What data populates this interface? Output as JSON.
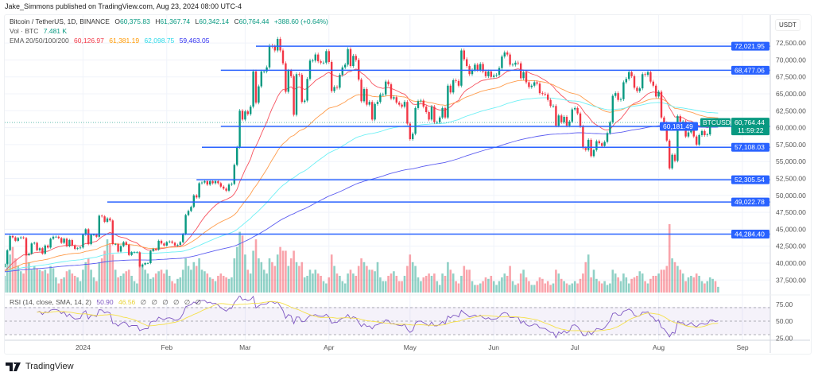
{
  "publisher_line": "Jake_Simmons published on TradingView.com, Aug 23, 2024 08:00 UTC-4",
  "symbol": {
    "title": "Bitcoin / TetherUS, 1D, BINANCE",
    "o_label": "O",
    "open": "60,375.83",
    "h_label": "H",
    "high": "61,367.74",
    "l_label": "L",
    "low": "60,342.14",
    "c_label": "C",
    "close": "60,764.44",
    "change": "+388.60 (+0.64%)"
  },
  "volume_legend": {
    "label": "Vol · BTC",
    "value": "7.481 K"
  },
  "ema_legend": {
    "label": "EMA 20/50/100/200",
    "ema20": "60,126.97",
    "ema50": "61,381.19",
    "ema100": "62,098.75",
    "ema200": "59,463.05"
  },
  "rsi_legend": {
    "label": "RSI (14, close, SMA, 14, 2)",
    "rsi": "50.90",
    "sma": "46.56",
    "empty_values": [
      "∅",
      "∅",
      "∅",
      "∅",
      "∅",
      "∅"
    ]
  },
  "currency": "USDT",
  "current_price": {
    "symbol": "BTCUSDT",
    "price": "60,764.44",
    "countdown": "11:59:22"
  },
  "colors": {
    "up": "#089981",
    "down": "#f23645",
    "level_line": "#2962ff",
    "ema20": "#f7525f",
    "ema50": "#ff9d4d",
    "ema100": "#6ff0f5",
    "ema200": "#5b5cf0",
    "rsi": "#7e57c2",
    "rsi_sma": "#f5e04a"
  },
  "footer_brand": "TradingView",
  "chart_data": {
    "type": "candlestick",
    "interval": "1D",
    "start": "2023-12-01",
    "ylim": [
      35500,
      75000
    ],
    "price_ticks": [
      "72,500.00",
      "70,000.00",
      "67,500.00",
      "65,000.00",
      "62,500.00",
      "60,000.00",
      "57,500.00",
      "55,000.00",
      "52,500.00",
      "50,000.00",
      "47,500.00",
      "45,000.00",
      "42,500.00",
      "40,000.00",
      "37,500.00"
    ],
    "time_ticks": [
      {
        "label": "2024",
        "date": "2024-01-01"
      },
      {
        "label": "Feb",
        "date": "2024-02-01"
      },
      {
        "label": "Mar",
        "date": "2024-03-01"
      },
      {
        "label": "Apr",
        "date": "2024-04-01"
      },
      {
        "label": "May",
        "date": "2024-05-01"
      },
      {
        "label": "Jun",
        "date": "2024-06-01"
      },
      {
        "label": "Jul",
        "date": "2024-07-01"
      },
      {
        "label": "Aug",
        "date": "2024-08-01"
      },
      {
        "label": "Sep",
        "date": "2024-09-01"
      }
    ],
    "rsi_ticks": [
      "75.00",
      "50.00",
      "25.00"
    ],
    "levels": [
      {
        "price": 72021.95,
        "label": "72,021.95",
        "start": "2024-03-05"
      },
      {
        "price": 68477.06,
        "label": "68,477.06",
        "start": "2024-02-21"
      },
      {
        "price": 60181.49,
        "label": "60,181.49",
        "start": "2024-02-21"
      },
      {
        "price": 57108.03,
        "label": "57,108.03",
        "start": "2024-02-14"
      },
      {
        "price": 52305.54,
        "label": "52,305.54",
        "start": "2024-02-12"
      },
      {
        "price": 49022.78,
        "label": "49,022.78",
        "start": "2024-01-10"
      },
      {
        "price": 44284.4,
        "label": "44,284.40",
        "start": "2023-12-03"
      }
    ],
    "close": [
      38700,
      39400,
      39900,
      41900,
      44000,
      43800,
      43300,
      43700,
      43800,
      43700,
      41200,
      41400,
      42900,
      43000,
      41900,
      42200,
      41400,
      42600,
      42300,
      43600,
      43900,
      43900,
      43700,
      43000,
      43600,
      42500,
      43400,
      42600,
      42100,
      42200,
      42300,
      44200,
      45000,
      42800,
      44200,
      44200,
      43900,
      47000,
      46900,
      46100,
      46600,
      46300,
      42800,
      42800,
      41700,
      42500,
      43100,
      42700,
      41200,
      41600,
      41600,
      41600,
      39500,
      39800,
      40000,
      40000,
      41800,
      42100,
      42000,
      43300,
      42900,
      42600,
      43100,
      43200,
      43000,
      42600,
      42700,
      43100,
      44300,
      47100,
      47700,
      48300,
      50000,
      49700,
      51800,
      51900,
      52100,
      51600,
      52100,
      51800,
      52100,
      51800,
      51300,
      51000,
      50700,
      51600,
      51700,
      54500,
      57100,
      62500,
      61200,
      62400,
      62000,
      63100,
      68300,
      63700,
      66100,
      68300,
      68300,
      68900,
      72100,
      72000,
      71400,
      73100,
      71400,
      69500,
      65300,
      68400,
      67600,
      61900,
      67900,
      67800,
      63800,
      64000,
      67200,
      69900,
      69900,
      70800,
      69800,
      69600,
      69600,
      71300,
      69700,
      65400,
      66000,
      65900,
      67800,
      68900,
      69300,
      71600,
      69100,
      70600,
      70000,
      67100,
      63900,
      65700,
      63400,
      63800,
      61200,
      63500,
      63800,
      64900,
      64900,
      66800,
      66400,
      64300,
      64500,
      63700,
      63400,
      63100,
      63800,
      60600,
      58300,
      59100,
      62900,
      63900,
      64000,
      63100,
      62300,
      61200,
      63100,
      60800,
      60800,
      61500,
      62900,
      61500,
      66200,
      65200,
      67000,
      66900,
      66200,
      71400,
      70100,
      69100,
      67900,
      68500,
      69300,
      68500,
      69400,
      68300,
      67600,
      68300,
      67500,
      67700,
      67800,
      68800,
      70500,
      71100,
      70800,
      69300,
      69300,
      69600,
      69500,
      67300,
      68200,
      66700,
      66000,
      66200,
      66700,
      66500,
      65100,
      65000,
      64900,
      64100,
      63200,
      63200,
      60300,
      61800,
      60800,
      61600,
      60300,
      60900,
      62700,
      62900,
      62100,
      60200,
      57000,
      56700,
      58200,
      55800,
      56700,
      58000,
      57700,
      57300,
      57900,
      59200,
      60800,
      64700,
      65100,
      64100,
      64200,
      66700,
      67200,
      68200,
      67600,
      65900,
      65400,
      65800,
      67900,
      67800,
      68200,
      66800,
      66200,
      64600,
      65300,
      61500,
      60700,
      58100,
      54000,
      56000,
      55100,
      61700,
      60900,
      60900,
      58700,
      59300,
      60600,
      58700,
      57500,
      58900,
      59500,
      58900,
      59000,
      61100,
      61100,
      60380,
      60764.44
    ],
    "volume_k": [
      45,
      30,
      22,
      40,
      50,
      60,
      45,
      35,
      28,
      25,
      55,
      40,
      30,
      35,
      32,
      30,
      28,
      30,
      25,
      35,
      32,
      20,
      12,
      18,
      20,
      28,
      30,
      25,
      22,
      20,
      15,
      30,
      40,
      45,
      30,
      20,
      15,
      40,
      45,
      55,
      70,
      65,
      50,
      30,
      20,
      22,
      25,
      28,
      30,
      22,
      15,
      12,
      40,
      35,
      30,
      25,
      18,
      20,
      25,
      28,
      30,
      25,
      30,
      22,
      15,
      12,
      18,
      20,
      30,
      45,
      35,
      30,
      40,
      35,
      45,
      30,
      28,
      25,
      20,
      18,
      15,
      22,
      25,
      22,
      20,
      18,
      20,
      45,
      60,
      80,
      75,
      50,
      30,
      25,
      55,
      70,
      45,
      40,
      30,
      25,
      45,
      40,
      35,
      50,
      60,
      55,
      55,
      35,
      45,
      55,
      40,
      35,
      40,
      20,
      22,
      30,
      25,
      30,
      25,
      22,
      15,
      12,
      20,
      50,
      35,
      25,
      22,
      15,
      12,
      25,
      30,
      25,
      22,
      35,
      45,
      40,
      35,
      30,
      30,
      28,
      40,
      20,
      15,
      15,
      22,
      25,
      28,
      22,
      15,
      15,
      22,
      35,
      50,
      40,
      35,
      20,
      15,
      20,
      22,
      25,
      22,
      25,
      15,
      10,
      25,
      22,
      40,
      30,
      25,
      15,
      12,
      22,
      35,
      30,
      30,
      15,
      10,
      10,
      12,
      15,
      20,
      18,
      22,
      15,
      10,
      15,
      20,
      25,
      22,
      35,
      15,
      10,
      12,
      25,
      30,
      20,
      15,
      10,
      10,
      15,
      20,
      18,
      12,
      15,
      10,
      12,
      30,
      25,
      18,
      15,
      12,
      10,
      12,
      15,
      12,
      18,
      25,
      40,
      50,
      20,
      30,
      18,
      15,
      12,
      15,
      10,
      12,
      30,
      25,
      20,
      15,
      25,
      20,
      12,
      18,
      20,
      22,
      28,
      25,
      15,
      12,
      18,
      22,
      22,
      25,
      30,
      30,
      35,
      90,
      45,
      40,
      35,
      30,
      25,
      15,
      20,
      22,
      20,
      25,
      22,
      15,
      12,
      15,
      20,
      18,
      15,
      7.481
    ]
  }
}
